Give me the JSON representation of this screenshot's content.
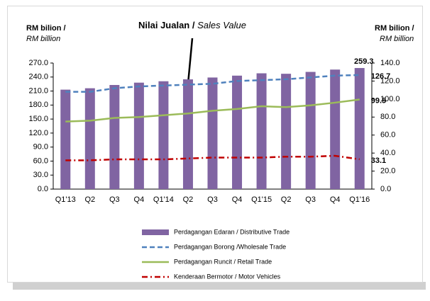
{
  "chart_data": {
    "type": "combo",
    "title": {
      "ms": "Nilai Jualan /",
      "en": "Sales Value"
    },
    "y_label": {
      "ms": "RM bilion /",
      "en": "RM billion"
    },
    "y2_label": {
      "ms": "RM bilion /",
      "en": "RM billion"
    },
    "categories": [
      "Q1'13",
      "Q2",
      "Q3",
      "Q4",
      "Q1'14",
      "Q2",
      "Q3",
      "Q4",
      "Q1'15",
      "Q2",
      "Q3",
      "Q4",
      "Q1'16"
    ],
    "series": [
      {
        "name": "Perdagangan Edaran / Distributive Trade",
        "type": "bar",
        "axis": "y",
        "color": "#8064a2",
        "values": [
          213,
          216,
          223,
          228,
          231,
          235,
          239,
          243,
          248,
          247,
          251,
          256,
          259.3
        ]
      },
      {
        "name": "Perdagangan Borong /Wholesale Trade",
        "type": "line",
        "axis": "y2",
        "color": "#4f81bd",
        "style": "dashed",
        "values": [
          108,
          108,
          112,
          114,
          115,
          116,
          117,
          120,
          121,
          122,
          124,
          126,
          126.7
        ]
      },
      {
        "name": "Perdagangan Runcit / Retail Trade",
        "type": "line",
        "axis": "y2",
        "color": "#9bbb59",
        "style": "solid",
        "values": [
          75,
          76,
          79,
          80,
          82,
          84,
          87,
          89,
          92,
          91,
          93,
          96,
          99.5
        ]
      },
      {
        "name": "Kenderaan Bermotor / Motor Vehicles",
        "type": "line",
        "axis": "y2",
        "color": "#c00000",
        "style": "dashdot",
        "values": [
          32,
          32,
          33,
          33,
          33,
          34,
          35,
          35,
          35,
          36,
          36,
          37,
          33.1
        ]
      }
    ],
    "ylim": [
      0,
      270
    ],
    "yticks": [
      {
        "value": 0,
        "label": "0.0"
      },
      {
        "value": 30,
        "label": "30.0"
      },
      {
        "value": 60,
        "label": "60.0"
      },
      {
        "value": 90,
        "label": "90.0"
      },
      {
        "value": 120,
        "label": "120.0"
      },
      {
        "value": 150,
        "label": "150.0"
      },
      {
        "value": 180,
        "label": "180.0"
      },
      {
        "value": 210,
        "label": "210.0"
      },
      {
        "value": 240,
        "label": "240.0"
      },
      {
        "value": 270,
        "label": "270.0"
      }
    ],
    "y2lim": [
      0,
      140
    ],
    "y2ticks": [
      {
        "value": 0,
        "label": "0.0"
      },
      {
        "value": 20,
        "label": "20.0"
      },
      {
        "value": 40,
        "label": "40.0"
      },
      {
        "value": 60,
        "label": "60.0"
      },
      {
        "value": 80,
        "label": "80.0"
      },
      {
        "value": 100,
        "label": "100.0"
      },
      {
        "value": 120,
        "label": "120.0"
      },
      {
        "value": 140,
        "label": "140.0"
      }
    ],
    "grid": false,
    "legend": "bottom"
  }
}
